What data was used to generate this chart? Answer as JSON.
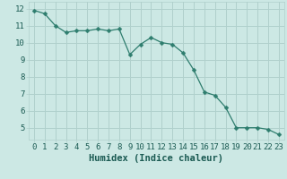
{
  "x": [
    0,
    1,
    2,
    3,
    4,
    5,
    6,
    7,
    8,
    9,
    10,
    11,
    12,
    13,
    14,
    15,
    16,
    17,
    18,
    19,
    20,
    21,
    22,
    23
  ],
  "y": [
    11.9,
    11.7,
    11.0,
    10.6,
    10.7,
    10.7,
    10.8,
    10.7,
    10.8,
    9.3,
    9.9,
    10.3,
    10.0,
    9.9,
    9.4,
    8.4,
    7.1,
    6.9,
    6.2,
    5.0,
    5.0,
    5.0,
    4.9,
    4.6
  ],
  "line_color": "#2e7d6e",
  "marker": "D",
  "marker_size": 2.5,
  "bg_color": "#cce8e4",
  "grid_color": "#b0d0cc",
  "xlabel": "Humidex (Indice chaleur)",
  "xlim": [
    -0.5,
    23.5
  ],
  "ylim": [
    4.3,
    12.4
  ],
  "yticks": [
    5,
    6,
    7,
    8,
    9,
    10,
    11,
    12
  ],
  "xticks": [
    0,
    1,
    2,
    3,
    4,
    5,
    6,
    7,
    8,
    9,
    10,
    11,
    12,
    13,
    14,
    15,
    16,
    17,
    18,
    19,
    20,
    21,
    22,
    23
  ],
  "tick_fontsize": 6.5,
  "xlabel_fontsize": 7.5
}
